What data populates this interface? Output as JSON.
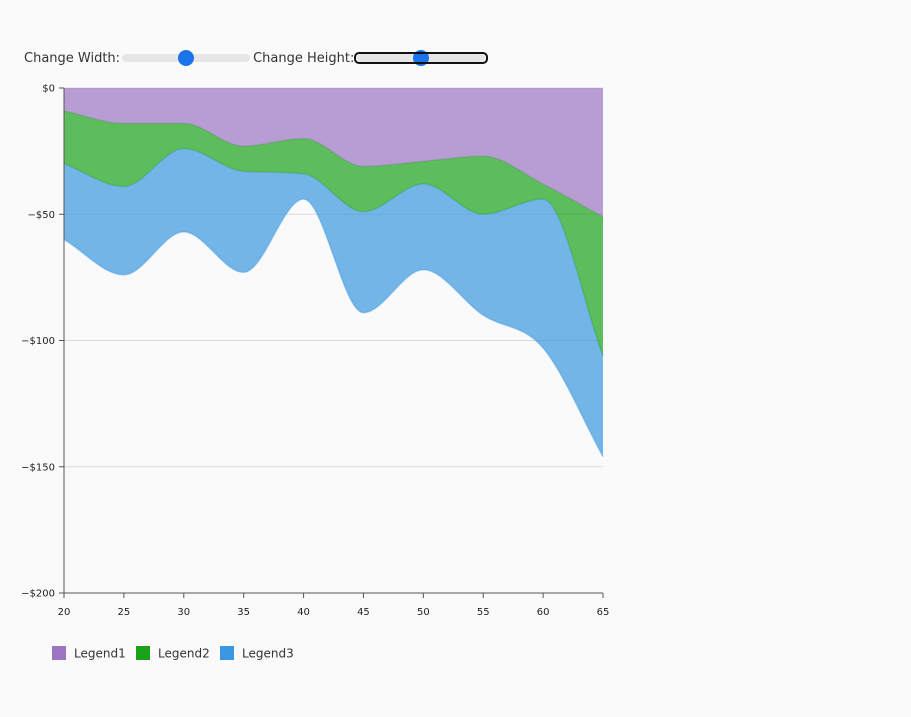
{
  "controls": {
    "width_label": "Change Width:",
    "height_label": "Change Height:",
    "width_value": 50,
    "height_value": 50
  },
  "chart_data": {
    "type": "area",
    "stacked": true,
    "x": [
      20,
      25,
      30,
      35,
      40,
      45,
      50,
      55,
      60,
      65
    ],
    "series": [
      {
        "name": "Legend1",
        "color": "#9b75c2",
        "values": [
          -9,
          -14,
          -14,
          -23,
          -20,
          -31,
          -29,
          -27,
          -38,
          -51
        ]
      },
      {
        "name": "Legend2",
        "color": "#1aa31a",
        "values": [
          -21,
          -25,
          -10,
          -10,
          -14,
          -18,
          -9,
          -23,
          -6,
          -55
        ]
      },
      {
        "name": "Legend3",
        "color": "#3a97e0",
        "values": [
          -30,
          -35,
          -33,
          -40,
          -10,
          -40,
          -34,
          -40,
          -59,
          -40
        ]
      }
    ],
    "xticks": [
      20,
      25,
      30,
      35,
      40,
      45,
      50,
      55,
      60,
      65
    ],
    "yticks": [
      0,
      -50,
      -100,
      -150,
      -200
    ],
    "ytick_labels": [
      "$0",
      "−$50",
      "−$100",
      "−$150",
      "−$200"
    ],
    "xlim": [
      20,
      65
    ],
    "ylim": [
      -200,
      0
    ],
    "grid": "horizontal",
    "legend_position": "bottom-left"
  }
}
